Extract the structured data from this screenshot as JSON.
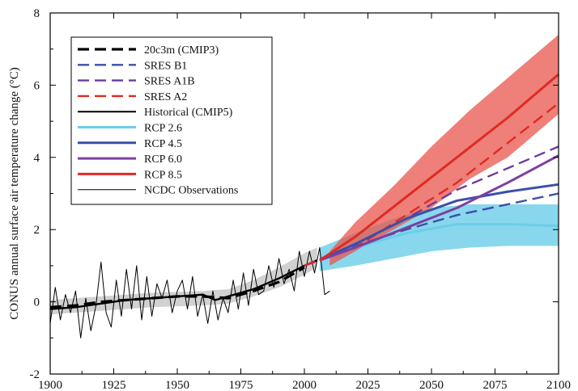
{
  "chart_data": {
    "type": "line",
    "title": "",
    "xlabel": "",
    "ylabel": "CONUS annual surface air temperature change (°C)",
    "xlim": [
      1900,
      2100
    ],
    "ylim": [
      -2,
      8
    ],
    "x_ticks": [
      "1900",
      "1925",
      "1950",
      "1975",
      "2000",
      "2025",
      "2050",
      "2075",
      "2100"
    ],
    "y_ticks": [
      "-2",
      "0",
      "2",
      "4",
      "6",
      "8"
    ],
    "legend_position": "top-left",
    "legend": [
      {
        "label": "20c3m (CMIP3)",
        "color": "#000000",
        "dash": true,
        "width": 3.2
      },
      {
        "label": "SRES B1",
        "color": "#3b4fa8",
        "dash": true,
        "width": 2.4
      },
      {
        "label": "SRES A1B",
        "color": "#6a3aa0",
        "dash": true,
        "width": 2.4
      },
      {
        "label": "SRES A2",
        "color": "#e02a22",
        "dash": true,
        "width": 2.4
      },
      {
        "label": "Historical (CMIP5)",
        "color": "#000000",
        "dash": false,
        "width": 2
      },
      {
        "label": "RCP 2.6",
        "color": "#6ccde8",
        "dash": false,
        "width": 3
      },
      {
        "label": "RCP 4.5",
        "color": "#3b4fa8",
        "dash": false,
        "width": 3
      },
      {
        "label": "RCP 6.0",
        "color": "#7d3fa0",
        "dash": false,
        "width": 3
      },
      {
        "label": "RCP 8.5",
        "color": "#e02a22",
        "dash": false,
        "width": 3
      },
      {
        "label": "NCDC Observations",
        "color": "#000000",
        "dash": false,
        "width": 1
      }
    ],
    "bands": [
      {
        "name": "Historical (CMIP5)",
        "color": "#c9c9c9",
        "opacity": 0.85,
        "x": [
          1900,
          1920,
          1940,
          1960,
          1970,
          1980,
          1990,
          2000,
          2005
        ],
        "lower": [
          -0.35,
          -0.25,
          -0.15,
          -0.1,
          -0.05,
          0.15,
          0.4,
          0.75,
          0.95
        ],
        "upper": [
          0.05,
          0.15,
          0.25,
          0.3,
          0.35,
          0.6,
          0.95,
          1.35,
          1.5
        ]
      },
      {
        "name": "RCP 2.6",
        "color": "#6ccde8",
        "opacity": 0.8,
        "x": [
          2006,
          2020,
          2035,
          2050,
          2065,
          2080,
          2100
        ],
        "lower": [
          0.85,
          1.0,
          1.2,
          1.4,
          1.5,
          1.55,
          1.55
        ],
        "upper": [
          1.5,
          1.9,
          2.3,
          2.6,
          2.7,
          2.7,
          2.7
        ]
      },
      {
        "name": "RCP 8.5",
        "color": "#e8554c",
        "opacity": 0.75,
        "x": [
          2010,
          2020,
          2035,
          2050,
          2065,
          2080,
          2100
        ],
        "lower": [
          1.0,
          1.4,
          2.0,
          2.6,
          3.4,
          4.0,
          5.2
        ],
        "upper": [
          1.4,
          2.2,
          3.2,
          4.3,
          5.3,
          6.2,
          7.4
        ]
      }
    ],
    "series": [
      {
        "name": "20c3m (CMIP3)",
        "color": "#000000",
        "dash": true,
        "width": 3.2,
        "x": [
          1900,
          1910,
          1920,
          1930,
          1940,
          1950,
          1960,
          1970,
          1980,
          1990,
          2000
        ],
        "y": [
          -0.15,
          -0.1,
          0.0,
          0.05,
          0.1,
          0.15,
          0.15,
          0.1,
          0.3,
          0.55,
          0.95
        ]
      },
      {
        "name": "Historical (CMIP5)",
        "color": "#000000",
        "dash": false,
        "width": 2.4,
        "x": [
          1900,
          1910,
          1920,
          1930,
          1940,
          1950,
          1960,
          1965,
          1970,
          1980,
          1990,
          2000,
          2005
        ],
        "y": [
          -0.2,
          -0.15,
          -0.05,
          0.05,
          0.1,
          0.15,
          0.2,
          0.05,
          0.15,
          0.35,
          0.65,
          1.0,
          1.15
        ]
      },
      {
        "name": "SRES B1",
        "color": "#3b4fa8",
        "dash": true,
        "width": 2.4,
        "x": [
          2000,
          2020,
          2040,
          2060,
          2080,
          2100
        ],
        "y": [
          1.0,
          1.55,
          2.0,
          2.4,
          2.7,
          3.0
        ]
      },
      {
        "name": "SRES A1B",
        "color": "#6a3aa0",
        "dash": true,
        "width": 2.4,
        "x": [
          2000,
          2020,
          2040,
          2060,
          2080,
          2100
        ],
        "y": [
          1.0,
          1.6,
          2.3,
          3.1,
          3.7,
          4.3
        ]
      },
      {
        "name": "SRES A2",
        "color": "#e02a22",
        "dash": true,
        "width": 2.4,
        "x": [
          2000,
          2020,
          2040,
          2060,
          2080,
          2100
        ],
        "y": [
          1.0,
          1.5,
          2.4,
          3.3,
          4.4,
          5.5
        ]
      },
      {
        "name": "RCP 2.6",
        "color": "#6ccde8",
        "dash": false,
        "width": 3,
        "x": [
          2006,
          2020,
          2040,
          2060,
          2080,
          2100
        ],
        "y": [
          1.15,
          1.5,
          1.9,
          2.15,
          2.15,
          2.1
        ]
      },
      {
        "name": "RCP 4.5",
        "color": "#3b4fa8",
        "dash": false,
        "width": 3,
        "x": [
          2006,
          2020,
          2040,
          2060,
          2080,
          2100
        ],
        "y": [
          1.15,
          1.6,
          2.3,
          2.8,
          3.05,
          3.25
        ]
      },
      {
        "name": "RCP 6.0",
        "color": "#7d3fa0",
        "dash": false,
        "width": 3,
        "x": [
          2006,
          2020,
          2040,
          2060,
          2080,
          2100
        ],
        "y": [
          1.15,
          1.5,
          2.05,
          2.6,
          3.3,
          4.05
        ]
      },
      {
        "name": "RCP 8.5",
        "color": "#e02a22",
        "dash": false,
        "width": 3,
        "x": [
          2006,
          2020,
          2040,
          2060,
          2080,
          2100
        ],
        "y": [
          1.15,
          1.8,
          2.9,
          4.0,
          5.1,
          6.3
        ]
      },
      {
        "name": "NCDC Observations",
        "color": "#000000",
        "dash": false,
        "width": 1,
        "x": [
          1900,
          1902,
          1904,
          1906,
          1908,
          1910,
          1912,
          1914,
          1916,
          1918,
          1920,
          1922,
          1924,
          1926,
          1928,
          1930,
          1932,
          1934,
          1936,
          1938,
          1940,
          1942,
          1944,
          1946,
          1948,
          1950,
          1952,
          1954,
          1956,
          1958,
          1960,
          1962,
          1964,
          1966,
          1968,
          1970,
          1972,
          1974,
          1976,
          1978,
          1980,
          1982,
          1984,
          1986,
          1988,
          1990,
          1992,
          1994,
          1996,
          1998,
          2000,
          2002,
          2004,
          2006,
          2008,
          2010
        ],
        "y": [
          -0.6,
          0.4,
          -0.5,
          0.2,
          -0.3,
          0.3,
          -1.0,
          0.1,
          -0.8,
          -0.1,
          1.1,
          -0.3,
          -0.7,
          0.6,
          -0.4,
          0.9,
          -0.2,
          1.0,
          -0.5,
          0.7,
          -0.4,
          0.5,
          0.1,
          0.6,
          -0.3,
          0.3,
          0.6,
          -0.2,
          0.7,
          -0.4,
          0.2,
          -0.6,
          0.3,
          -0.5,
          0.1,
          -0.3,
          0.6,
          -0.2,
          0.8,
          -0.1,
          0.9,
          0.2,
          0.3,
          1.0,
          0.4,
          1.2,
          0.5,
          0.9,
          0.3,
          1.4,
          0.7,
          1.4,
          0.8,
          1.5,
          0.2,
          0.3
        ]
      }
    ]
  }
}
